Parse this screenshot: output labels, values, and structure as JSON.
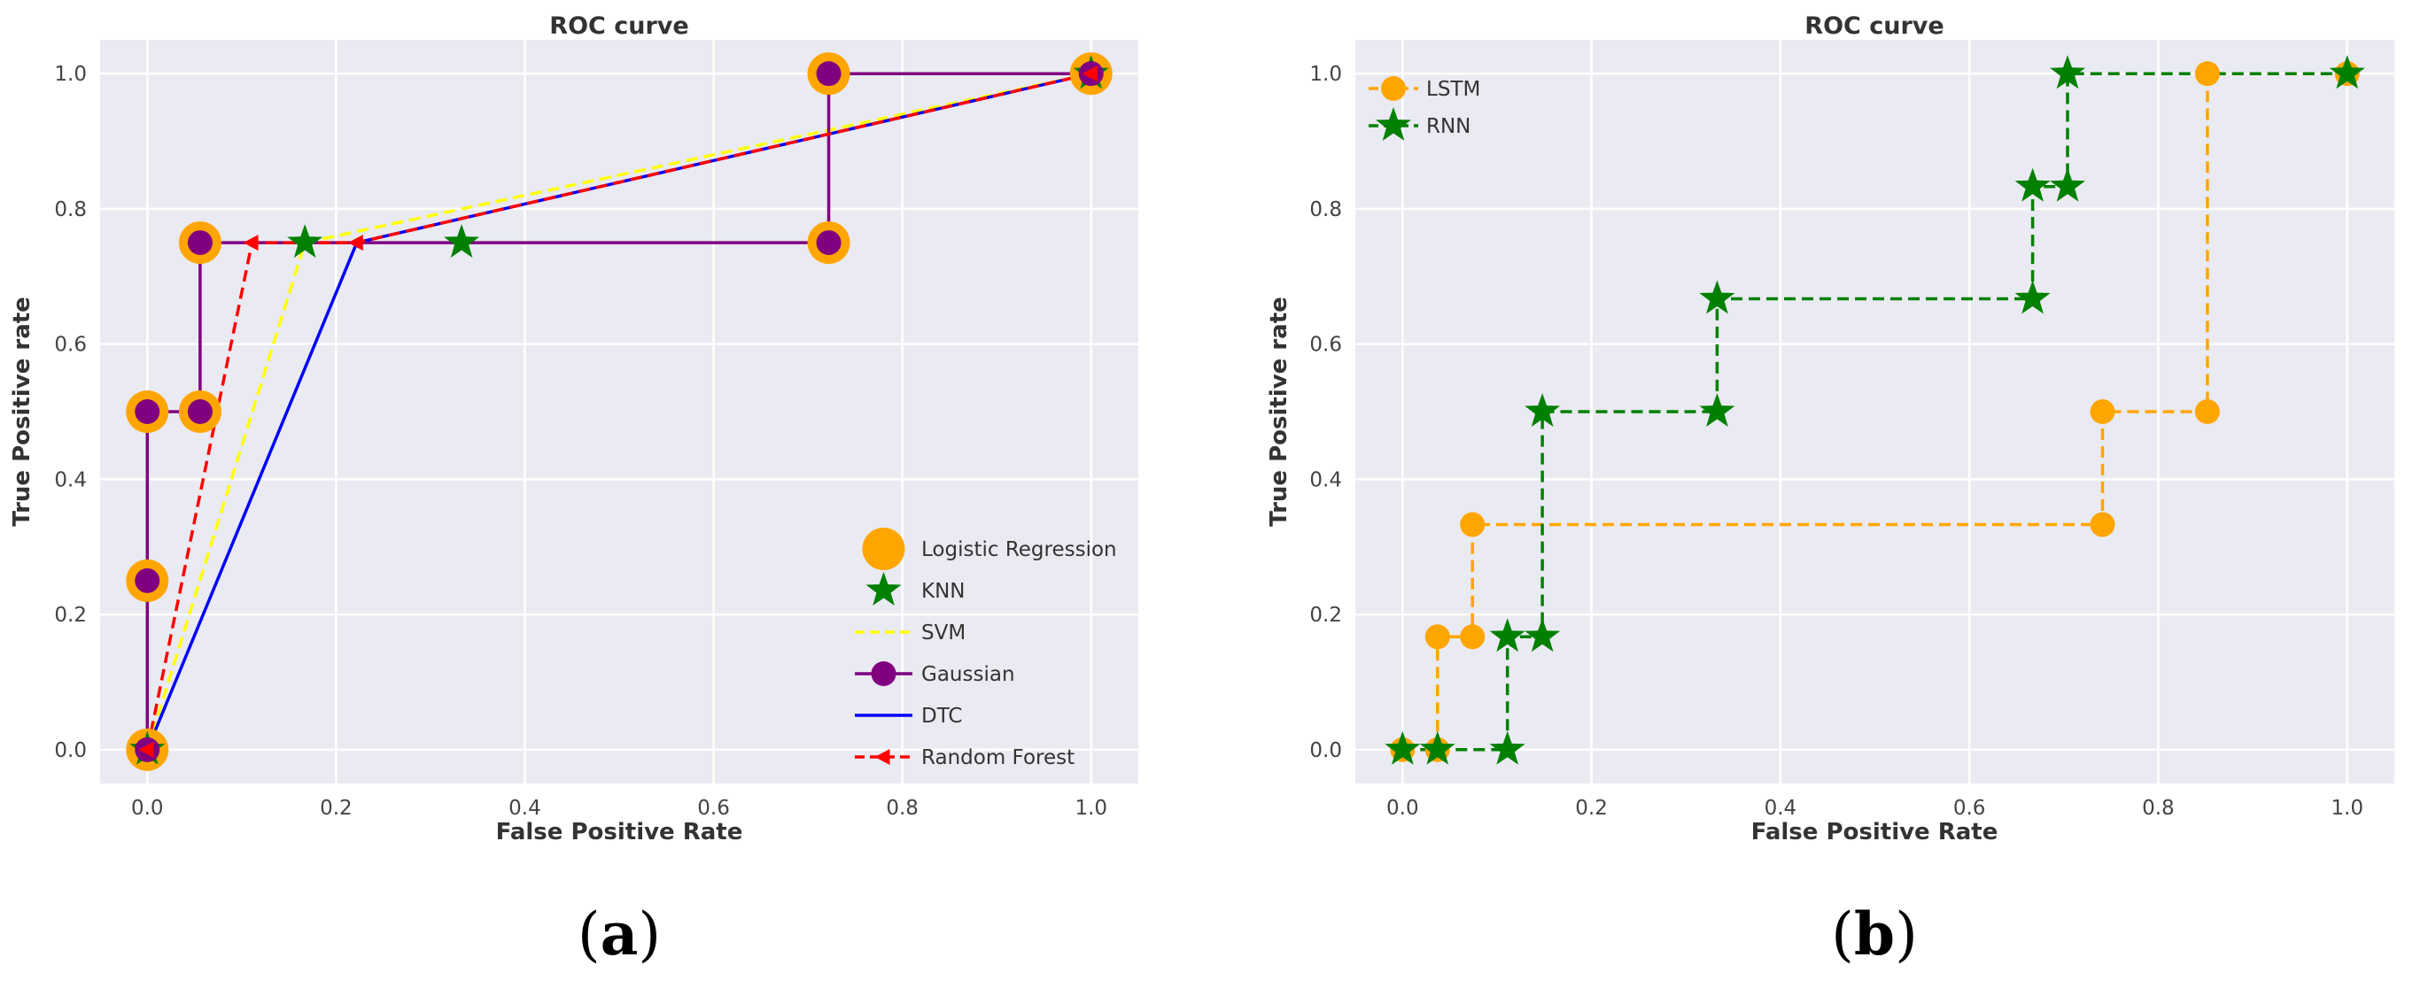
{
  "chart_data": [
    {
      "type": "line",
      "panel_label": "a",
      "title": "ROC curve",
      "xlabel": "False Positive Rate",
      "ylabel": "True Positive rate",
      "xlim": [
        -0.05,
        1.05
      ],
      "ylim": [
        -0.05,
        1.05
      ],
      "xticks": [
        "0.0",
        "0.2",
        "0.4",
        "0.6",
        "0.8",
        "1.0"
      ],
      "yticks": [
        "0.0",
        "0.2",
        "0.4",
        "0.6",
        "0.8",
        "1.0"
      ],
      "grid": true,
      "legend_position": "lower-right",
      "series": [
        {
          "name": "Logistic Regression",
          "color": "#FFA500",
          "marker": "big-circle",
          "linestyle": "none",
          "x": [
            0,
            0,
            0,
            0.056,
            0.056,
            0.722,
            0.722,
            1.0
          ],
          "y": [
            0,
            0.25,
            0.5,
            0.5,
            0.75,
            0.75,
            1.0,
            1.0
          ]
        },
        {
          "name": "KNN",
          "color": "#008000",
          "marker": "star",
          "linestyle": "none",
          "x": [
            0,
            0.167,
            0.333,
            1.0
          ],
          "y": [
            0,
            0.75,
            0.75,
            1.0
          ]
        },
        {
          "name": "SVM",
          "color": "#FFFF00",
          "marker": "none",
          "linestyle": "dashed",
          "x": [
            0,
            0.167,
            1.0
          ],
          "y": [
            0,
            0.75,
            1.0
          ]
        },
        {
          "name": "Gaussian",
          "color": "#800080",
          "marker": "circle",
          "linestyle": "solid",
          "x": [
            0,
            0,
            0,
            0.056,
            0.056,
            0.722,
            0.722,
            1.0
          ],
          "y": [
            0,
            0.25,
            0.5,
            0.5,
            0.75,
            0.75,
            1.0,
            1.0
          ]
        },
        {
          "name": "DTC",
          "color": "#0000FF",
          "marker": "none",
          "linestyle": "solid",
          "x": [
            0,
            0.222,
            1.0
          ],
          "y": [
            0,
            0.75,
            1.0
          ]
        },
        {
          "name": "Random Forest",
          "color": "#FF0000",
          "marker": "arrow-left",
          "linestyle": "dashed",
          "x": [
            0,
            0.111,
            0.222,
            1.0
          ],
          "y": [
            0,
            0.75,
            0.75,
            1.0
          ]
        }
      ]
    },
    {
      "type": "line",
      "panel_label": "b",
      "title": "ROC curve",
      "xlabel": "False Positive Rate",
      "ylabel": "True Positive rate",
      "xlim": [
        -0.05,
        1.05
      ],
      "ylim": [
        -0.05,
        1.05
      ],
      "xticks": [
        "0.0",
        "0.2",
        "0.4",
        "0.6",
        "0.8",
        "1.0"
      ],
      "yticks": [
        "0.0",
        "0.2",
        "0.4",
        "0.6",
        "0.8",
        "1.0"
      ],
      "grid": true,
      "legend_position": "upper-left",
      "series": [
        {
          "name": "LSTM",
          "color": "#FFA500",
          "marker": "circle",
          "linestyle": "dashed",
          "x": [
            0,
            0.037,
            0.037,
            0.074,
            0.074,
            0.741,
            0.741,
            0.852,
            0.852,
            1.0
          ],
          "y": [
            0,
            0,
            0.167,
            0.167,
            0.333,
            0.333,
            0.5,
            0.5,
            1.0,
            1.0
          ]
        },
        {
          "name": "RNN",
          "color": "#008000",
          "marker": "star",
          "linestyle": "dashed",
          "x": [
            0,
            0.037,
            0.111,
            0.111,
            0.148,
            0.148,
            0.333,
            0.333,
            0.667,
            0.667,
            0.704,
            0.704,
            1.0
          ],
          "y": [
            0,
            0,
            0,
            0.167,
            0.167,
            0.5,
            0.5,
            0.667,
            0.667,
            0.833,
            0.833,
            1.0,
            1.0
          ]
        }
      ]
    }
  ]
}
